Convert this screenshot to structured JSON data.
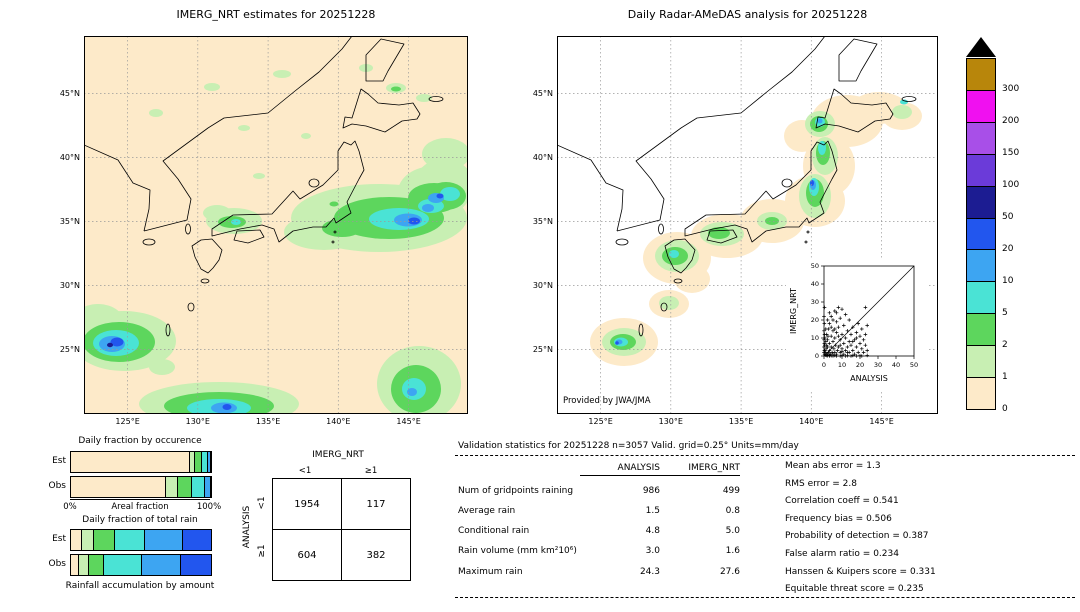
{
  "palette": {
    "p0": "#fdeac9",
    "p1": "#c8efb3",
    "p2": "#5dd65d",
    "p5": "#4ae3d5",
    "p10": "#3da5f2",
    "p20": "#2256ee",
    "p50": "#1c1c92",
    "p100": "#6b3bd9",
    "p150": "#a84fe8",
    "p200": "#f010f0",
    "p300": "#b8860b",
    "overflow": "#000000",
    "grid": "#999999"
  },
  "colorbar": {
    "labels": [
      "300",
      "200",
      "150",
      "100",
      "50",
      "20",
      "10",
      "5",
      "2",
      "1",
      "0"
    ],
    "color_keys": [
      "p300",
      "p200",
      "p150",
      "p100",
      "p50",
      "p20",
      "p10",
      "p5",
      "p2",
      "p1",
      "p0"
    ],
    "overflow_key": "overflow",
    "units": "mm/day"
  },
  "chart_data": [
    {
      "type": "heatmap",
      "title": "IMERG_NRT estimates for 20251228",
      "x_ticks": [
        "125°E",
        "130°E",
        "135°E",
        "140°E",
        "145°E"
      ],
      "y_ticks": [
        "45°N",
        "40°N",
        "35°N",
        "30°N",
        "25°N"
      ],
      "units": "mm/day",
      "legend_levels": [
        0,
        1,
        2,
        5,
        10,
        20,
        50,
        100,
        150,
        200,
        300
      ],
      "notes": "Satellite rain estimate shaded over the whole domain; main rain areas: Pacific band east of Honshu with 10-50 mm/day cores near 145E 35N, patches over western Honshu, a strong system southwest of Kyushu near 124E 25N with 20-100 mm/day cores, a rain band along 20-22N, and a patch near 145E 20-25N."
    },
    {
      "type": "heatmap",
      "title": "Daily Radar-AMeDAS analysis for 20251228",
      "credit": "Provided by JWA/JMA",
      "x_ticks": [
        "125°E",
        "130°E",
        "135°E",
        "140°E",
        "145°E"
      ],
      "y_ticks": [
        "45°N",
        "40°N",
        "35°N",
        "30°N",
        "25°N"
      ],
      "units": "mm/day",
      "legend_levels": [
        0,
        1,
        2,
        5,
        10,
        20,
        50,
        100,
        150,
        200,
        300
      ],
      "notes": "Radar-gauge analysis only along the Japanese archipelago; rain cores over west Kyushu, San-in coast, Kanto-Tohoku Pacific side (10-50 mm/day), western Hokkaido and around Okinawa."
    },
    {
      "type": "bar",
      "stacked": true,
      "title": "Daily fraction by occurence",
      "xlabel": "Areal fraction",
      "x_tick_labels": [
        "0%",
        "100%"
      ],
      "categories": [
        "Est",
        "Obs"
      ],
      "series": [
        {
          "name": "0-1 mm/day",
          "color_key": "p0",
          "values": [
            84,
            67
          ]
        },
        {
          "name": "1-2 mm/day",
          "color_key": "p1",
          "values": [
            4,
            9
          ]
        },
        {
          "name": "2-5 mm/day",
          "color_key": "p2",
          "values": [
            5,
            10
          ]
        },
        {
          "name": "5-10 mm/day",
          "color_key": "p5",
          "values": [
            4,
            9
          ]
        },
        {
          "name": "10-20 mm/day",
          "color_key": "p10",
          "values": [
            2,
            4
          ]
        },
        {
          "name": "20-50 mm/day",
          "color_key": "p20",
          "values": [
            1,
            1
          ]
        }
      ]
    },
    {
      "type": "bar",
      "stacked": true,
      "title": "Daily fraction of total rain",
      "caption": "Rainfall accumulation by amount",
      "categories": [
        "Est",
        "Obs"
      ],
      "series": [
        {
          "name": "0-1 mm/day",
          "color_key": "p0",
          "values": [
            7,
            5
          ]
        },
        {
          "name": "1-2 mm/day",
          "color_key": "p1",
          "values": [
            9,
            7
          ]
        },
        {
          "name": "2-5 mm/day",
          "color_key": "p2",
          "values": [
            15,
            11
          ]
        },
        {
          "name": "5-10 mm/day",
          "color_key": "p5",
          "values": [
            21,
            27
          ]
        },
        {
          "name": "10-20 mm/day",
          "color_key": "p10",
          "values": [
            27,
            28
          ]
        },
        {
          "name": "20-50 mm/day",
          "color_key": "p20",
          "values": [
            21,
            22
          ]
        }
      ]
    },
    {
      "type": "table",
      "name": "contingency-table",
      "col_header": "IMERG_NRT",
      "row_header": "ANALYSIS",
      "col_labels": [
        "<1",
        "≥1"
      ],
      "row_labels": [
        "<1",
        "≥1"
      ],
      "cells": [
        [
          "1954",
          "117"
        ],
        [
          "604",
          "382"
        ]
      ]
    },
    {
      "type": "scatter",
      "xlabel": "ANALYSIS",
      "ylabel": "IMERG_NRT",
      "xlim": [
        0,
        50
      ],
      "ylim": [
        0,
        50
      ],
      "ticks": [
        0,
        10,
        20,
        30,
        40,
        50
      ],
      "points": [
        [
          0.3,
          1
        ],
        [
          0.5,
          3
        ],
        [
          0.5,
          6
        ],
        [
          0.8,
          0.5
        ],
        [
          1,
          2
        ],
        [
          1,
          8
        ],
        [
          1.2,
          4
        ],
        [
          1.5,
          0.3
        ],
        [
          1.5,
          12
        ],
        [
          2,
          1
        ],
        [
          2,
          5
        ],
        [
          2,
          9
        ],
        [
          2.5,
          2
        ],
        [
          2.5,
          15
        ],
        [
          3,
          0.5
        ],
        [
          3,
          3
        ],
        [
          3,
          7
        ],
        [
          3,
          18
        ],
        [
          3.5,
          1
        ],
        [
          4,
          5
        ],
        [
          4,
          11
        ],
        [
          4,
          22
        ],
        [
          4.5,
          2
        ],
        [
          5,
          1
        ],
        [
          5,
          8
        ],
        [
          5,
          14
        ],
        [
          5.5,
          4
        ],
        [
          6,
          2
        ],
        [
          6,
          10
        ],
        [
          6,
          25
        ],
        [
          6.5,
          6
        ],
        [
          7,
          1
        ],
        [
          7,
          13
        ],
        [
          7,
          19
        ],
        [
          7.5,
          3
        ],
        [
          8,
          5
        ],
        [
          8,
          16
        ],
        [
          8,
          27
        ],
        [
          9,
          2
        ],
        [
          9,
          9
        ],
        [
          9,
          21
        ],
        [
          10,
          4
        ],
        [
          10,
          12
        ],
        [
          10,
          26
        ],
        [
          11,
          1
        ],
        [
          11,
          7
        ],
        [
          11,
          17
        ],
        [
          12,
          3
        ],
        [
          12,
          10
        ],
        [
          12,
          23
        ],
        [
          13,
          5
        ],
        [
          13,
          14
        ],
        [
          14,
          2
        ],
        [
          14,
          8
        ],
        [
          14,
          20
        ],
        [
          15,
          6
        ],
        [
          15,
          12
        ],
        [
          16,
          3
        ],
        [
          16,
          16
        ],
        [
          17,
          1
        ],
        [
          17,
          9
        ],
        [
          18,
          5
        ],
        [
          18,
          13
        ],
        [
          19,
          2
        ],
        [
          19,
          18
        ],
        [
          20,
          7
        ],
        [
          20,
          11
        ],
        [
          21,
          4
        ],
        [
          21,
          15
        ],
        [
          22,
          2
        ],
        [
          22,
          9
        ],
        [
          23,
          6
        ],
        [
          23,
          12
        ],
        [
          24,
          3
        ],
        [
          24,
          17
        ],
        [
          0.5,
          10
        ],
        [
          1,
          15
        ],
        [
          2,
          20
        ],
        [
          3,
          24
        ],
        [
          1.5,
          6
        ],
        [
          2.2,
          11
        ],
        [
          4,
          16
        ],
        [
          6,
          15
        ],
        [
          8,
          11
        ],
        [
          9,
          6
        ],
        [
          13,
          2
        ],
        [
          16,
          8
        ],
        [
          18,
          10
        ],
        [
          5,
          20
        ],
        [
          7,
          24
        ],
        [
          23,
          27
        ],
        [
          10,
          2.5
        ],
        [
          3,
          0
        ],
        [
          5,
          0
        ],
        [
          7,
          0
        ],
        [
          9,
          0
        ],
        [
          12,
          0
        ],
        [
          15,
          0
        ],
        [
          18,
          0
        ],
        [
          21,
          0
        ],
        [
          2,
          0.2
        ],
        [
          4,
          0.2
        ],
        [
          6,
          0.3
        ],
        [
          10,
          0.3
        ],
        [
          13,
          0.2
        ],
        [
          16,
          0.3
        ],
        [
          20,
          0.2
        ],
        [
          24,
          0.3
        ],
        [
          0,
          2
        ],
        [
          0,
          5
        ],
        [
          0,
          9
        ],
        [
          0,
          14
        ],
        [
          0.2,
          3
        ],
        [
          0.2,
          7
        ],
        [
          0.3,
          12
        ],
        [
          0.2,
          18
        ],
        [
          0,
          22
        ],
        [
          0.3,
          27
        ]
      ]
    },
    {
      "type": "table",
      "name": "validation-statistics",
      "title": "Validation statistics for 20251228  n=3057 Valid. grid=0.25° Units=mm/day",
      "columns": [
        "ANALYSIS",
        "IMERG_NRT"
      ],
      "rows": [
        {
          "label": "Num of gridpoints raining",
          "a": "986",
          "b": "499"
        },
        {
          "label": "Average rain",
          "a": "1.5",
          "b": "0.8"
        },
        {
          "label": "Conditional rain",
          "a": "4.8",
          "b": "5.0"
        },
        {
          "label": "Rain volume (mm km²10⁶)",
          "a": "3.0",
          "b": "1.6"
        },
        {
          "label": "Maximum rain",
          "a": "24.3",
          "b": "27.6"
        }
      ],
      "scores": [
        {
          "label": "Mean abs error =",
          "value": "1.3"
        },
        {
          "label": "RMS error =",
          "value": "2.8"
        },
        {
          "label": "Correlation coeff =",
          "value": "0.541"
        },
        {
          "label": "Frequency bias =",
          "value": "0.506"
        },
        {
          "label": "Probability of detection =",
          "value": "0.387"
        },
        {
          "label": "False alarm ratio =",
          "value": "0.234"
        },
        {
          "label": "Hanssen & Kuipers score =",
          "value": "0.331"
        },
        {
          "label": "Equitable threat score =",
          "value": "0.235"
        }
      ]
    }
  ]
}
